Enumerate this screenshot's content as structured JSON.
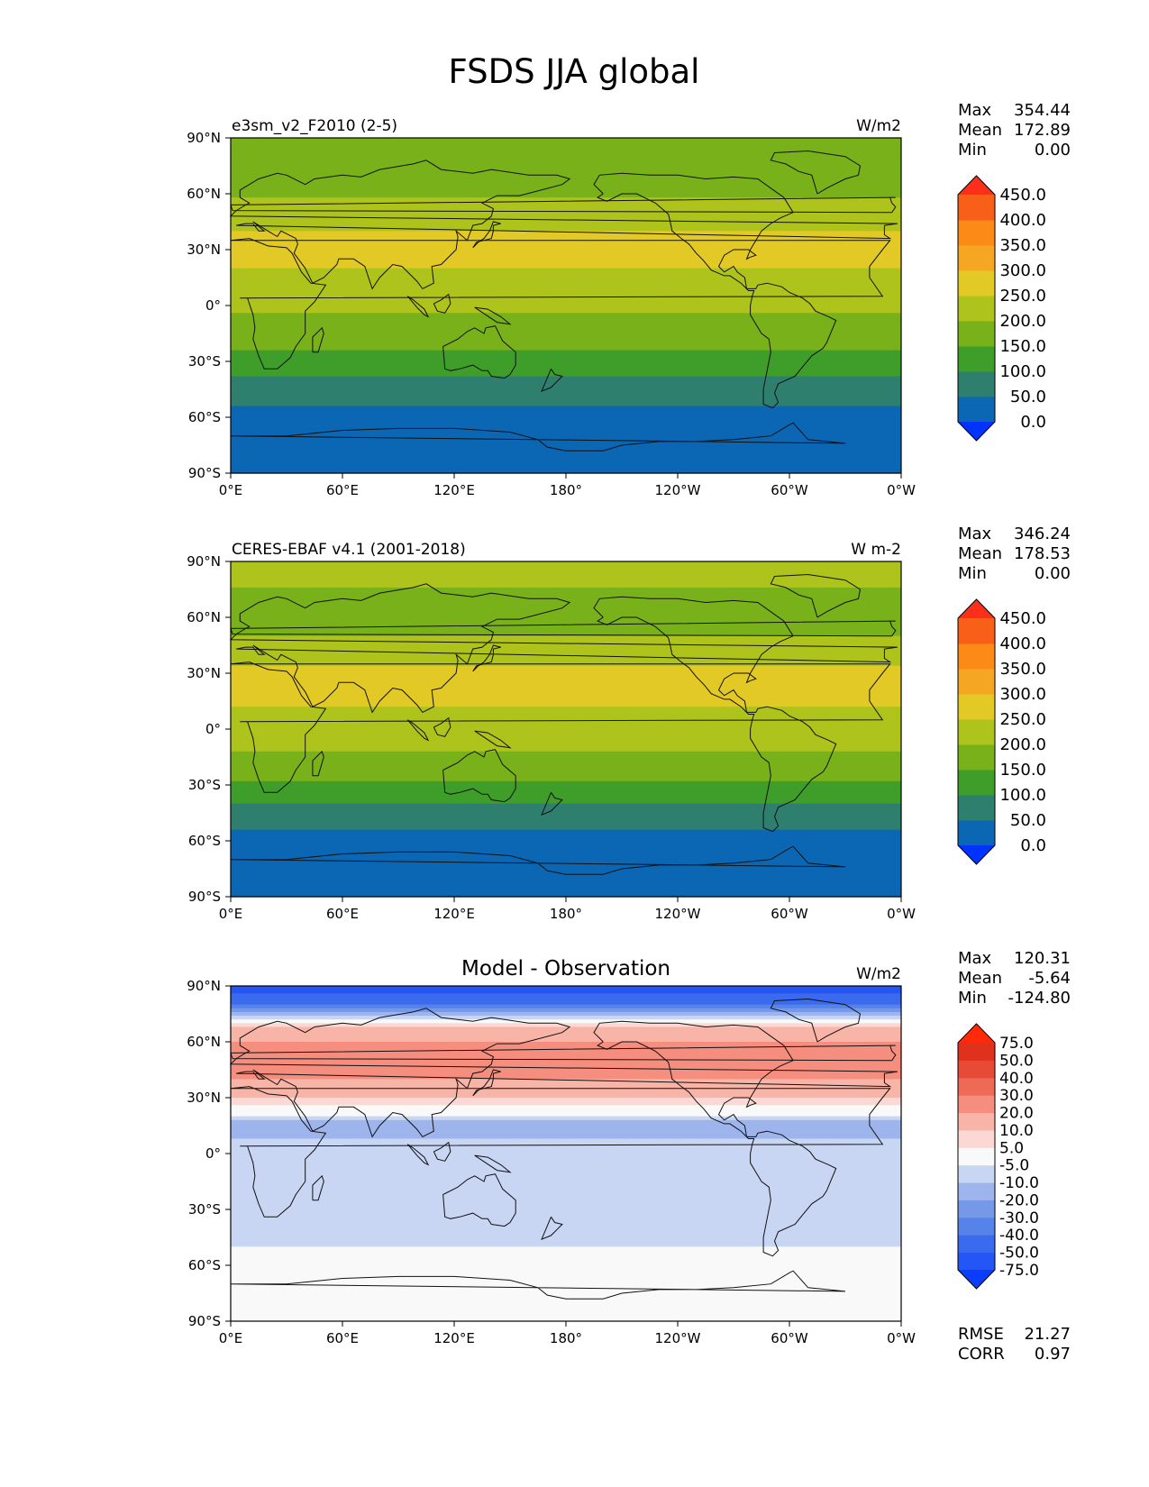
{
  "figure": {
    "title": "FSDS JJA global",
    "axes": {
      "lat_ticks": [
        "90°N",
        "60°N",
        "30°N",
        "0°",
        "30°S",
        "60°S",
        "90°S"
      ],
      "lon_ticks": [
        "0°E",
        "60°E",
        "120°E",
        "180°",
        "120°W",
        "60°W",
        "0°W"
      ]
    }
  },
  "chart_data": [
    {
      "type": "heatmap",
      "panel": "model",
      "title": "",
      "left_label": "e3sm_v2_F2010 (2-5)",
      "units": "W/m2",
      "stats": {
        "max": "354.44",
        "mean": "172.89",
        "min": "0.00"
      },
      "stat_labels": [
        "Max",
        "Mean",
        "Min"
      ],
      "levels": [
        "0.0",
        "50.0",
        "100.0",
        "150.0",
        "200.0",
        "250.0",
        "300.0",
        "350.0",
        "400.0",
        "450.0"
      ],
      "colors": [
        "#0033ff",
        "#0b66b3",
        "#2e7f6e",
        "#3f9d2a",
        "#78b11a",
        "#aec31b",
        "#e3c925",
        "#f5a623",
        "#fb8a16",
        "#f85f18",
        "#fe2f1a"
      ],
      "zonal_mean_profile": [
        {
          "lat": 90,
          "value": 150
        },
        {
          "lat": 80,
          "value": 170
        },
        {
          "lat": 70,
          "value": 185
        },
        {
          "lat": 60,
          "value": 195
        },
        {
          "lat": 45,
          "value": 235
        },
        {
          "lat": 30,
          "value": 275
        },
        {
          "lat": 15,
          "value": 240
        },
        {
          "lat": 0,
          "value": 205
        },
        {
          "lat": -15,
          "value": 180
        },
        {
          "lat": -30,
          "value": 130
        },
        {
          "lat": -45,
          "value": 75
        },
        {
          "lat": -60,
          "value": 30
        },
        {
          "lat": -75,
          "value": 5
        },
        {
          "lat": -90,
          "value": 0
        }
      ]
    },
    {
      "type": "heatmap",
      "panel": "observation",
      "title": "",
      "left_label": "CERES-EBAF v4.1 (2001-2018)",
      "units": "W m-2",
      "stats": {
        "max": "346.24",
        "mean": "178.53",
        "min": "0.00"
      },
      "stat_labels": [
        "Max",
        "Mean",
        "Min"
      ],
      "levels": [
        "0.0",
        "50.0",
        "100.0",
        "150.0",
        "200.0",
        "250.0",
        "300.0",
        "350.0",
        "400.0",
        "450.0"
      ],
      "colors": [
        "#0033ff",
        "#0b66b3",
        "#2e7f6e",
        "#3f9d2a",
        "#78b11a",
        "#aec31b",
        "#e3c925",
        "#f5a623",
        "#fb8a16",
        "#f85f18",
        "#fe2f1a"
      ],
      "zonal_mean_profile": [
        {
          "lat": 90,
          "value": 215
        },
        {
          "lat": 80,
          "value": 205
        },
        {
          "lat": 70,
          "value": 190
        },
        {
          "lat": 60,
          "value": 175
        },
        {
          "lat": 45,
          "value": 210
        },
        {
          "lat": 30,
          "value": 260
        },
        {
          "lat": 15,
          "value": 255
        },
        {
          "lat": 0,
          "value": 225
        },
        {
          "lat": -15,
          "value": 195
        },
        {
          "lat": -30,
          "value": 140
        },
        {
          "lat": -45,
          "value": 80
        },
        {
          "lat": -60,
          "value": 30
        },
        {
          "lat": -75,
          "value": 5
        },
        {
          "lat": -90,
          "value": 0
        }
      ]
    },
    {
      "type": "heatmap",
      "panel": "difference",
      "title": "Model - Observation",
      "left_label": "",
      "units": "W/m2",
      "stats": {
        "max": "120.31",
        "mean": "-5.64",
        "min": "-124.80"
      },
      "stat_labels": [
        "Max",
        "Mean",
        "Min"
      ],
      "levels": [
        "-75.0",
        "-50.0",
        "-40.0",
        "-30.0",
        "-20.0",
        "-10.0",
        "-5.0",
        "5.0",
        "10.0",
        "20.0",
        "30.0",
        "40.0",
        "50.0",
        "75.0"
      ],
      "colors": [
        "#0b3dff",
        "#2456f5",
        "#3a6aee",
        "#5683e8",
        "#7599e6",
        "#9db4ec",
        "#c8d5f3",
        "#f9f9f9",
        "#fbd8d3",
        "#f9b4a8",
        "#f58e7e",
        "#ee6a57",
        "#e74a37",
        "#e0301e",
        "#ff2a0a"
      ],
      "footer_stats": {
        "rmse": "21.27",
        "corr": "0.97"
      },
      "footer_labels": [
        "RMSE",
        "CORR"
      ],
      "zonal_mean_profile": [
        {
          "lat": 90,
          "value": -60
        },
        {
          "lat": 80,
          "value": -40
        },
        {
          "lat": 70,
          "value": 8
        },
        {
          "lat": 60,
          "value": 20
        },
        {
          "lat": 45,
          "value": 25
        },
        {
          "lat": 30,
          "value": 10
        },
        {
          "lat": 15,
          "value": -15
        },
        {
          "lat": 0,
          "value": -5
        },
        {
          "lat": -15,
          "value": -8
        },
        {
          "lat": -30,
          "value": -10
        },
        {
          "lat": -45,
          "value": -7
        },
        {
          "lat": -60,
          "value": 0
        },
        {
          "lat": -75,
          "value": 0
        },
        {
          "lat": -90,
          "value": 0
        }
      ]
    }
  ]
}
